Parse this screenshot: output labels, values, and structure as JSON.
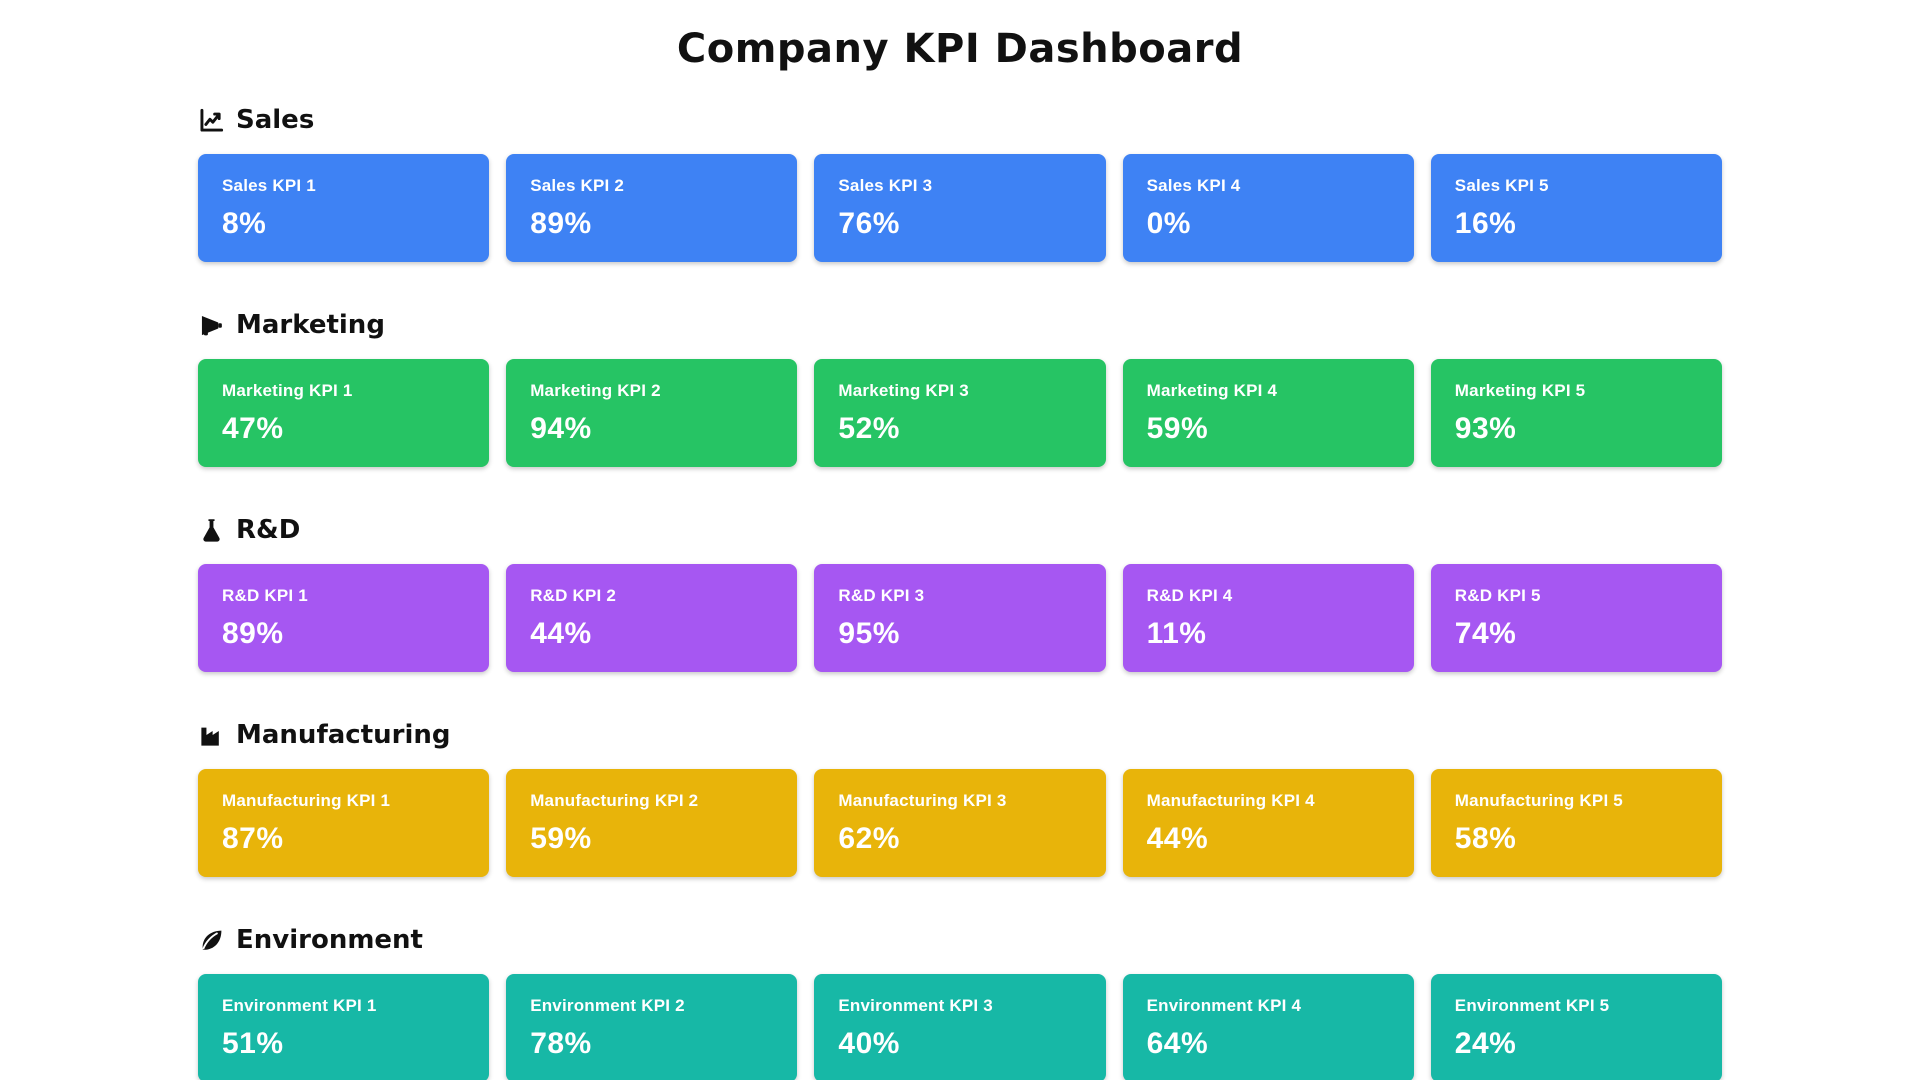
{
  "page": {
    "title": "Company KPI Dashboard",
    "background": "#ffffff",
    "text_color": "#111111"
  },
  "sections": [
    {
      "label": "Sales",
      "icon": "chart-line-icon",
      "card_color": "#3e82f4",
      "kpis": [
        {
          "label": "Sales KPI 1",
          "value": "8%"
        },
        {
          "label": "Sales KPI 2",
          "value": "89%"
        },
        {
          "label": "Sales KPI 3",
          "value": "76%"
        },
        {
          "label": "Sales KPI 4",
          "value": "0%"
        },
        {
          "label": "Sales KPI 5",
          "value": "16%"
        }
      ]
    },
    {
      "label": "Marketing",
      "icon": "megaphone-icon",
      "card_color": "#26c464",
      "kpis": [
        {
          "label": "Marketing KPI 1",
          "value": "47%"
        },
        {
          "label": "Marketing KPI 2",
          "value": "94%"
        },
        {
          "label": "Marketing KPI 3",
          "value": "52%"
        },
        {
          "label": "Marketing KPI 4",
          "value": "59%"
        },
        {
          "label": "Marketing KPI 5",
          "value": "93%"
        }
      ]
    },
    {
      "label": "R&D",
      "icon": "flask-icon",
      "card_color": "#a657f2",
      "kpis": [
        {
          "label": "R&D KPI 1",
          "value": "89%"
        },
        {
          "label": "R&D KPI 2",
          "value": "44%"
        },
        {
          "label": "R&D KPI 3",
          "value": "95%"
        },
        {
          "label": "R&D KPI 4",
          "value": "11%"
        },
        {
          "label": "R&D KPI 5",
          "value": "74%"
        }
      ]
    },
    {
      "label": "Manufacturing",
      "icon": "factory-icon",
      "card_color": "#e8b40a",
      "kpis": [
        {
          "label": "Manufacturing KPI 1",
          "value": "87%"
        },
        {
          "label": "Manufacturing KPI 2",
          "value": "59%"
        },
        {
          "label": "Manufacturing KPI 3",
          "value": "62%"
        },
        {
          "label": "Manufacturing KPI 4",
          "value": "44%"
        },
        {
          "label": "Manufacturing KPI 5",
          "value": "58%"
        }
      ]
    },
    {
      "label": "Environment",
      "icon": "leaf-icon",
      "card_color": "#17b8a6",
      "kpis": [
        {
          "label": "Environment KPI 1",
          "value": "51%"
        },
        {
          "label": "Environment KPI 2",
          "value": "78%"
        },
        {
          "label": "Environment KPI 3",
          "value": "40%"
        },
        {
          "label": "Environment KPI 4",
          "value": "64%"
        },
        {
          "label": "Environment KPI 5",
          "value": "24%"
        }
      ]
    }
  ]
}
